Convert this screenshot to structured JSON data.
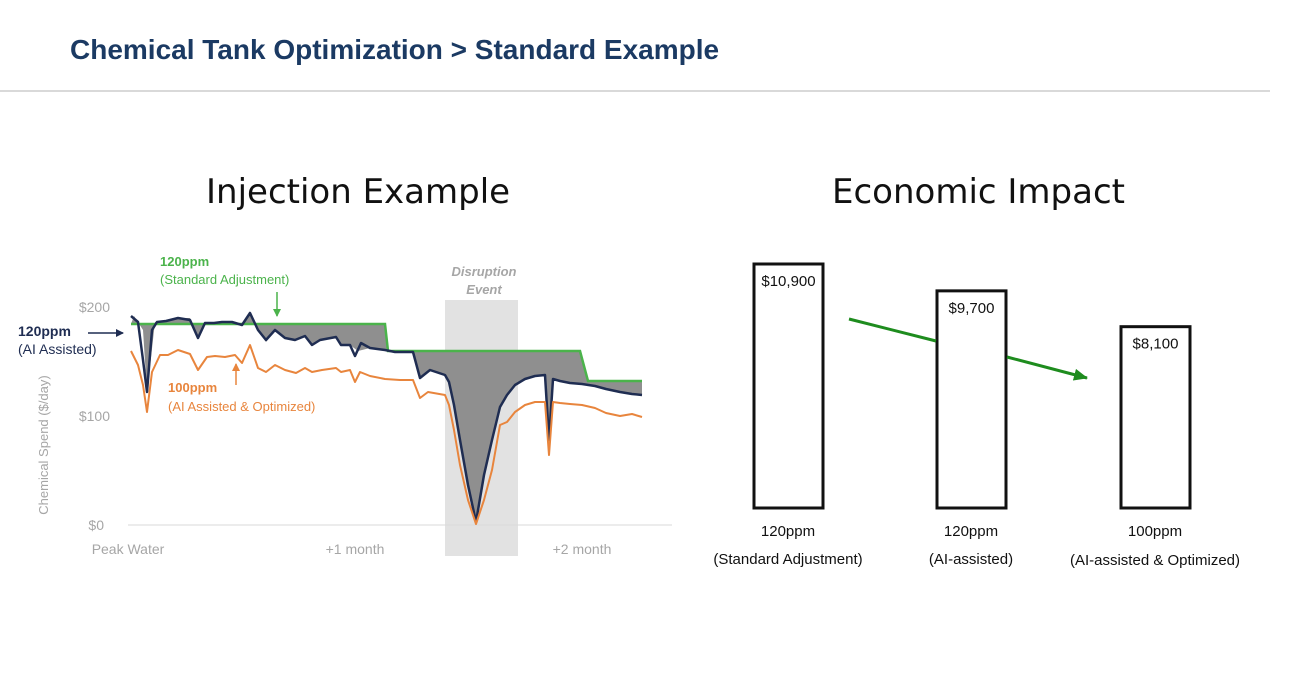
{
  "header": {
    "title": "Chemical Tank Optimization > Standard Example"
  },
  "chart_data": [
    {
      "type": "line",
      "title": "Injection Example",
      "ylabel": "Chemical Spend ($/day)",
      "y_ticks": [
        "$200",
        "$100",
        "$0"
      ],
      "ylim": [
        0,
        200
      ],
      "x_ticks": [
        "Peak Water",
        "+1 month",
        "+2 month"
      ],
      "xlim": [
        0,
        100
      ],
      "x_tick_positions": [
        7,
        52,
        97
      ],
      "shaded_region": {
        "label_line1": "Disruption",
        "label_line2": "Event",
        "x_start": 65.5,
        "x_end": 80,
        "color": "#e2e2e2"
      },
      "fill_between_color": "#8f8f8f",
      "series": [
        {
          "name": "120ppm",
          "name_sub": "(Standard Adjustment)",
          "color": "#4bb34b",
          "x": [
            0,
            50,
            52,
            100
          ],
          "values": [
            182,
            182,
            158,
            158
          ]
        },
        {
          "name": "120ppm",
          "name_sub": "(AI Assisted)",
          "color": "#1f2d52",
          "x": [
            0,
            2.8,
            3.3
          ],
          "values": [
            190,
            175,
            121
          ]
        },
        {
          "name": "100ppm",
          "name_sub": "(AI Assisted & Optimized)",
          "color": "#e8853d",
          "x": [
            0,
            2.8
          ],
          "values": [
            162,
            148
          ]
        }
      ]
    },
    {
      "type": "bar",
      "title": "Economic Impact",
      "categories": [
        {
          "line1": "120ppm",
          "line2": "(Standard Adjustment)"
        },
        {
          "line1": "120ppm",
          "line2": "(AI-assisted)"
        },
        {
          "line1": "100ppm",
          "line2": "(AI-assisted & Optimized)"
        }
      ],
      "values": [
        10900,
        9700,
        8100
      ],
      "value_labels": [
        "$10,900",
        "$9,700",
        "$8,100"
      ],
      "trend_arrow_color": "#1e8c1e"
    }
  ]
}
